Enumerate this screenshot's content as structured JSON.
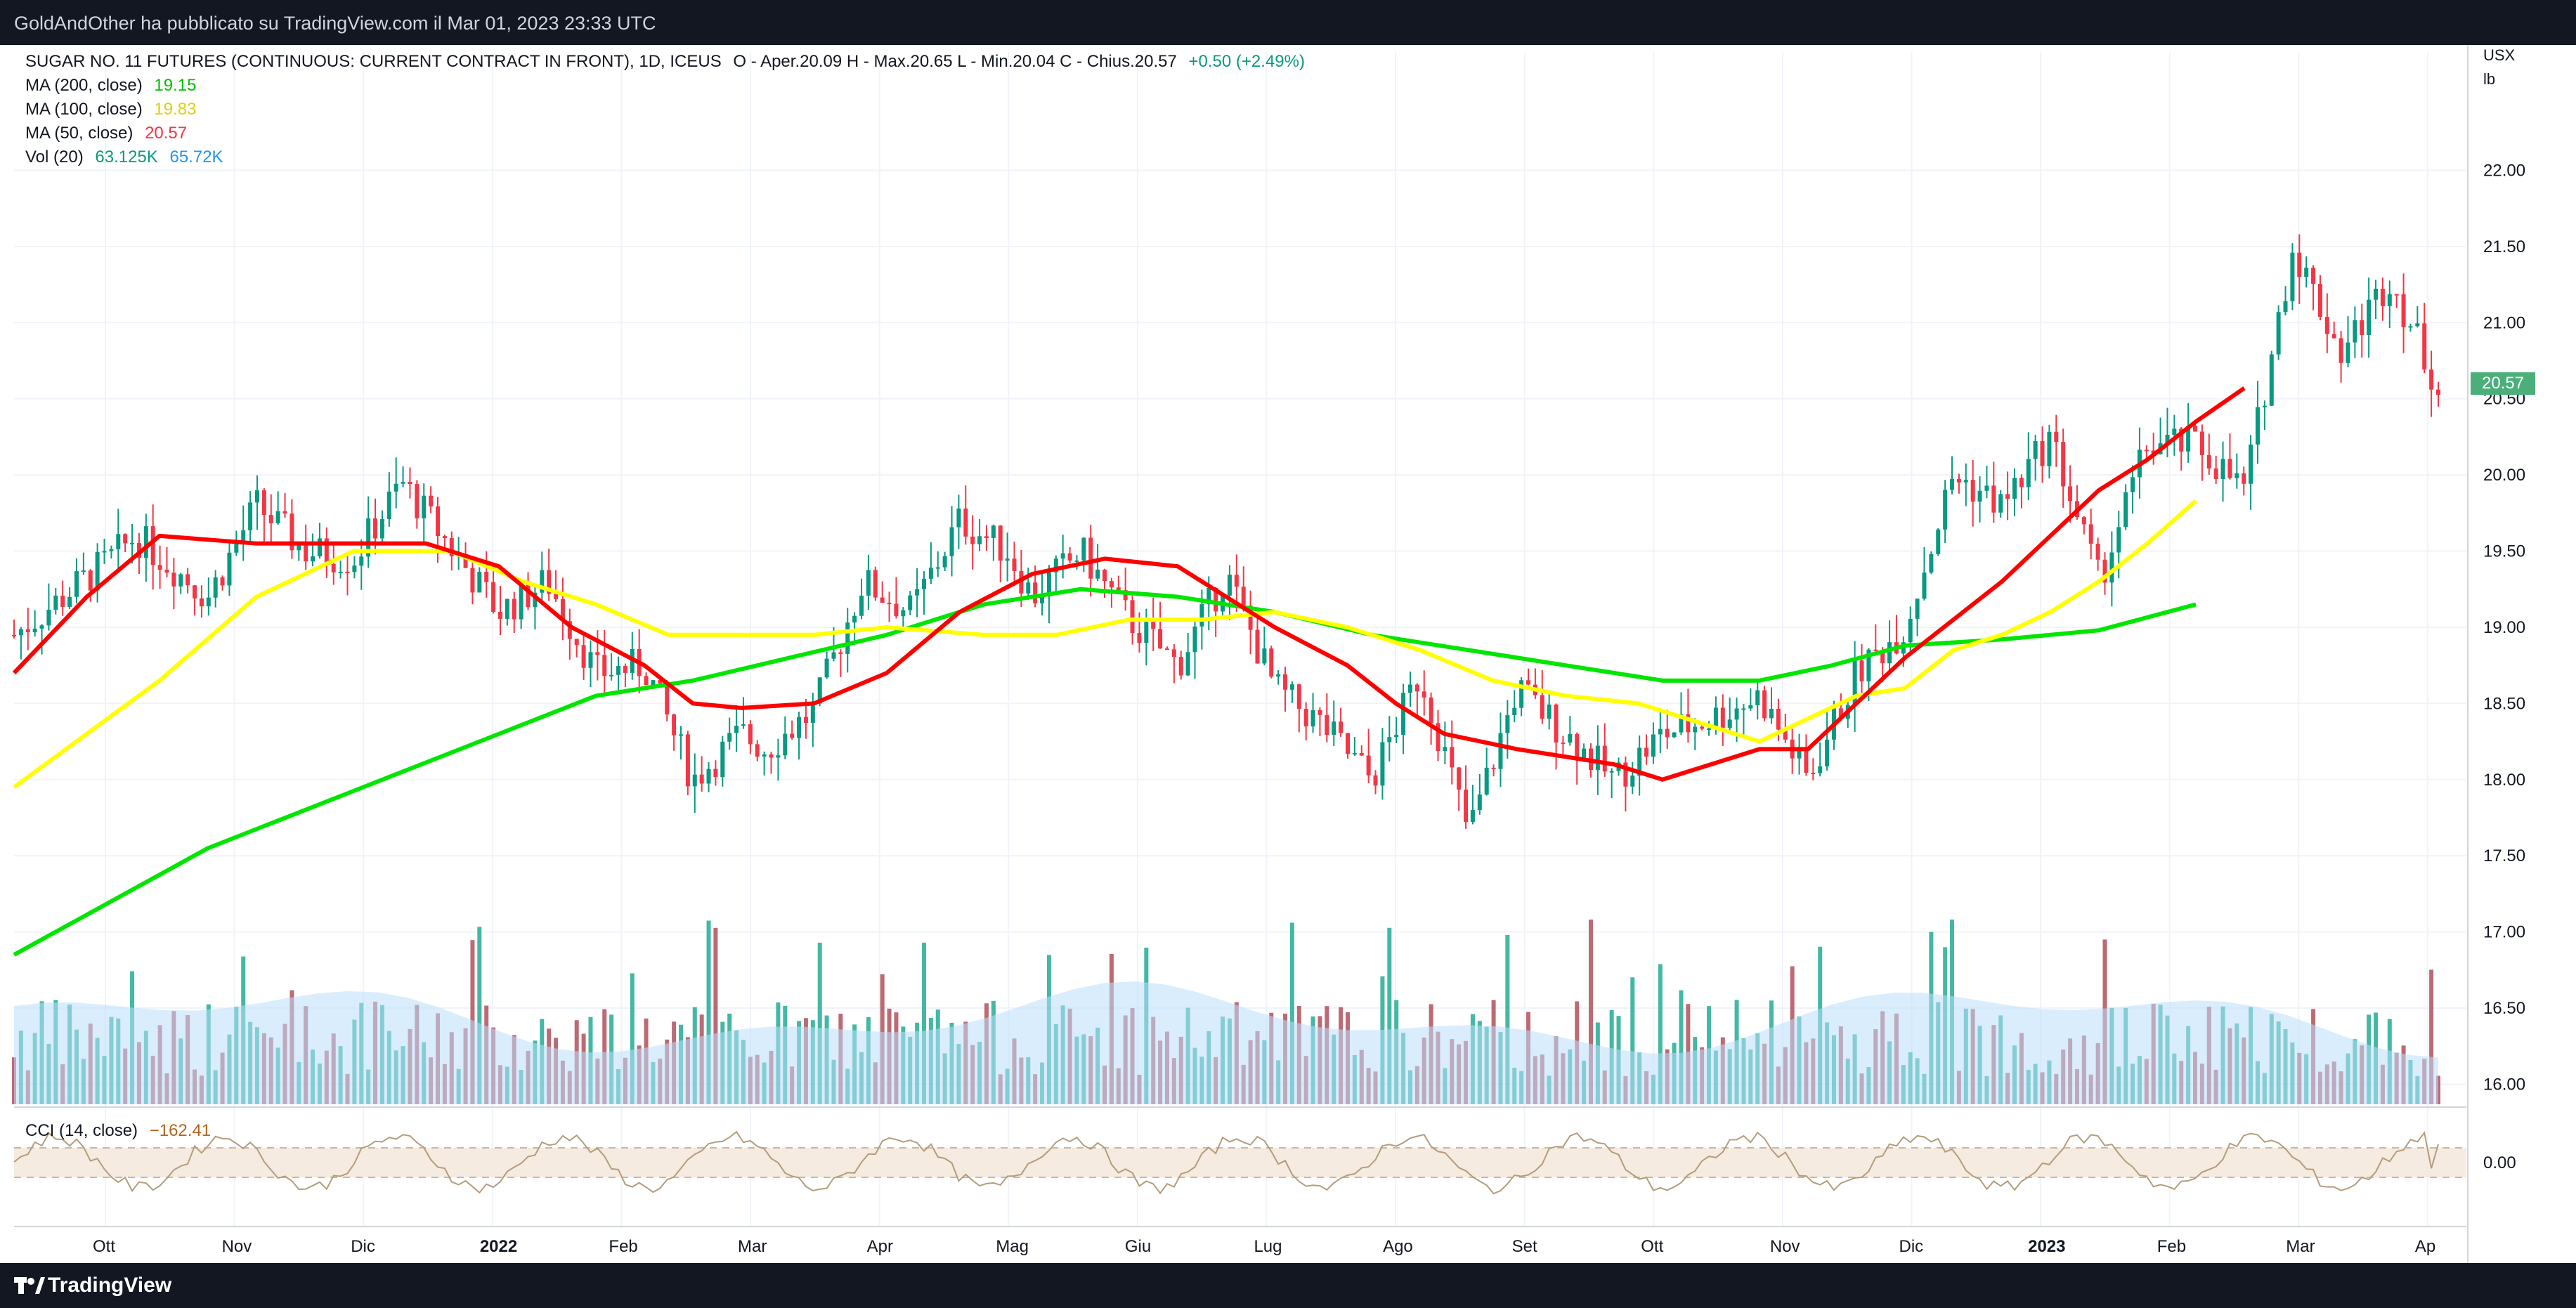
{
  "header": {
    "published": "GoldAndOther ha pubblicato su TradingView.com il Mar 01, 2023 23:33 UTC"
  },
  "footer": {
    "brand": "TradingView"
  },
  "legend": {
    "title": "SUGAR NO. 11 FUTURES (CONTINUOUS: CURRENT CONTRACT IN FRONT), 1D, ICEUS",
    "ohlc": "O - Aper.20.09  H - Max.20.65  L - Min.20.04  C - Chius.20.57",
    "change": "+0.50 (+2.49%)",
    "ma200_label": "MA (200, close)",
    "ma200_value": "19.15",
    "ma100_label": "MA (100, close)",
    "ma100_value": "19.83",
    "ma50_label": "MA (50, close)",
    "ma50_value": "20.57",
    "vol_label": "Vol (20)",
    "vol_value1": "63.125K",
    "vol_value2": "65.72K",
    "cci_label": "CCI (14, close)",
    "cci_value": "−162.41"
  },
  "unit_line1": "USX",
  "unit_line2": "lb",
  "last_price_tag": "20.57",
  "chart_data": {
    "type": "line",
    "title": "SUGAR NO. 11 FUTURES (CONTINUOUS: CURRENT CONTRACT IN FRONT), 1D, ICEUS",
    "ylim": [
      15.85,
      22.5
    ],
    "y_ticks": [
      "16.00",
      "16.50",
      "17.00",
      "17.50",
      "18.00",
      "18.50",
      "19.00",
      "19.50",
      "20.00",
      "20.50",
      "21.00",
      "21.50",
      "22.00"
    ],
    "x_ticks": [
      "Ott",
      "Nov",
      "Dic",
      "2022",
      "Feb",
      "Mar",
      "Apr",
      "Mag",
      "Giu",
      "Lug",
      "Ago",
      "Set",
      "Ott",
      "Nov",
      "Dic",
      "2023",
      "Feb",
      "Mar",
      "Ap"
    ],
    "cci_tick": "0.00",
    "colors": {
      "up": "#089981",
      "down": "#f23645",
      "ma200": "#00e600",
      "ma100": "#ffff00",
      "ma50": "#ff0000",
      "vol_ma": "#2196f3",
      "cci": "#b59c7a"
    },
    "price_path": [
      [
        0,
        18.95
      ],
      [
        0.04,
        19.45
      ],
      [
        0.05,
        19.6
      ],
      [
        0.08,
        19.2
      ],
      [
        0.1,
        19.8
      ],
      [
        0.12,
        19.5
      ],
      [
        0.14,
        19.45
      ],
      [
        0.16,
        19.95
      ],
      [
        0.2,
        19.1
      ],
      [
        0.22,
        19.3
      ],
      [
        0.24,
        18.7
      ],
      [
        0.26,
        18.75
      ],
      [
        0.28,
        18.0
      ],
      [
        0.3,
        18.3
      ],
      [
        0.31,
        18.2
      ],
      [
        0.33,
        18.45
      ],
      [
        0.35,
        19.3
      ],
      [
        0.37,
        19.1
      ],
      [
        0.39,
        19.7
      ],
      [
        0.41,
        19.5
      ],
      [
        0.42,
        19.2
      ],
      [
        0.44,
        19.5
      ],
      [
        0.46,
        19.05
      ],
      [
        0.48,
        18.75
      ],
      [
        0.5,
        19.35
      ],
      [
        0.52,
        18.6
      ],
      [
        0.54,
        18.35
      ],
      [
        0.56,
        18.0
      ],
      [
        0.58,
        18.7
      ],
      [
        0.6,
        17.65
      ],
      [
        0.62,
        18.6
      ],
      [
        0.64,
        18.3
      ],
      [
        0.66,
        18.0
      ],
      [
        0.68,
        18.3
      ],
      [
        0.7,
        18.4
      ],
      [
        0.72,
        18.55
      ],
      [
        0.74,
        18.0
      ],
      [
        0.76,
        18.7
      ],
      [
        0.78,
        19.0
      ],
      [
        0.8,
        20.0
      ],
      [
        0.82,
        19.8
      ],
      [
        0.84,
        20.25
      ],
      [
        0.86,
        19.3
      ],
      [
        0.88,
        20.2
      ],
      [
        0.9,
        20.2
      ],
      [
        0.92,
        19.9
      ],
      [
        0.94,
        21.5
      ],
      [
        0.96,
        20.8
      ],
      [
        0.98,
        21.3
      ],
      [
        1,
        20.57
      ]
    ],
    "ma50": [
      [
        0,
        18.7
      ],
      [
        0.03,
        19.2
      ],
      [
        0.06,
        19.6
      ],
      [
        0.1,
        19.55
      ],
      [
        0.14,
        19.55
      ],
      [
        0.17,
        19.55
      ],
      [
        0.2,
        19.4
      ],
      [
        0.23,
        19.0
      ],
      [
        0.26,
        18.75
      ],
      [
        0.28,
        18.5
      ],
      [
        0.3,
        18.47
      ],
      [
        0.33,
        18.5
      ],
      [
        0.36,
        18.7
      ],
      [
        0.39,
        19.1
      ],
      [
        0.42,
        19.35
      ],
      [
        0.45,
        19.45
      ],
      [
        0.48,
        19.4
      ],
      [
        0.5,
        19.2
      ],
      [
        0.52,
        19.0
      ],
      [
        0.55,
        18.75
      ],
      [
        0.57,
        18.5
      ],
      [
        0.59,
        18.3
      ],
      [
        0.62,
        18.2
      ],
      [
        0.64,
        18.15
      ],
      [
        0.66,
        18.1
      ],
      [
        0.68,
        18.0
      ],
      [
        0.7,
        18.1
      ],
      [
        0.72,
        18.2
      ],
      [
        0.74,
        18.2
      ],
      [
        0.76,
        18.5
      ],
      [
        0.78,
        18.8
      ],
      [
        0.8,
        19.05
      ],
      [
        0.82,
        19.3
      ],
      [
        0.84,
        19.6
      ],
      [
        0.86,
        19.9
      ],
      [
        0.88,
        20.1
      ],
      [
        0.9,
        20.35
      ],
      [
        0.92,
        20.57
      ]
    ],
    "ma100": [
      [
        0,
        17.95
      ],
      [
        0.03,
        18.3
      ],
      [
        0.06,
        18.65
      ],
      [
        0.1,
        19.2
      ],
      [
        0.14,
        19.5
      ],
      [
        0.18,
        19.5
      ],
      [
        0.21,
        19.3
      ],
      [
        0.24,
        19.15
      ],
      [
        0.27,
        18.95
      ],
      [
        0.3,
        18.95
      ],
      [
        0.33,
        18.95
      ],
      [
        0.36,
        19.0
      ],
      [
        0.4,
        18.95
      ],
      [
        0.43,
        18.95
      ],
      [
        0.46,
        19.05
      ],
      [
        0.49,
        19.05
      ],
      [
        0.52,
        19.1
      ],
      [
        0.55,
        19.0
      ],
      [
        0.58,
        18.85
      ],
      [
        0.61,
        18.65
      ],
      [
        0.64,
        18.55
      ],
      [
        0.67,
        18.5
      ],
      [
        0.7,
        18.35
      ],
      [
        0.72,
        18.25
      ],
      [
        0.74,
        18.4
      ],
      [
        0.76,
        18.55
      ],
      [
        0.78,
        18.6
      ],
      [
        0.8,
        18.85
      ],
      [
        0.82,
        18.95
      ],
      [
        0.84,
        19.1
      ],
      [
        0.86,
        19.3
      ],
      [
        0.88,
        19.55
      ],
      [
        0.9,
        19.83
      ]
    ],
    "ma200": [
      [
        0,
        16.85
      ],
      [
        0.04,
        17.2
      ],
      [
        0.08,
        17.55
      ],
      [
        0.12,
        17.8
      ],
      [
        0.16,
        18.05
      ],
      [
        0.2,
        18.3
      ],
      [
        0.24,
        18.55
      ],
      [
        0.28,
        18.65
      ],
      [
        0.32,
        18.8
      ],
      [
        0.36,
        18.95
      ],
      [
        0.4,
        19.15
      ],
      [
        0.44,
        19.25
      ],
      [
        0.48,
        19.2
      ],
      [
        0.52,
        19.1
      ],
      [
        0.56,
        18.95
      ],
      [
        0.6,
        18.85
      ],
      [
        0.64,
        18.75
      ],
      [
        0.68,
        18.65
      ],
      [
        0.72,
        18.65
      ],
      [
        0.75,
        18.75
      ],
      [
        0.78,
        18.88
      ],
      [
        0.82,
        18.92
      ],
      [
        0.86,
        18.98
      ],
      [
        0.9,
        19.15
      ]
    ]
  }
}
